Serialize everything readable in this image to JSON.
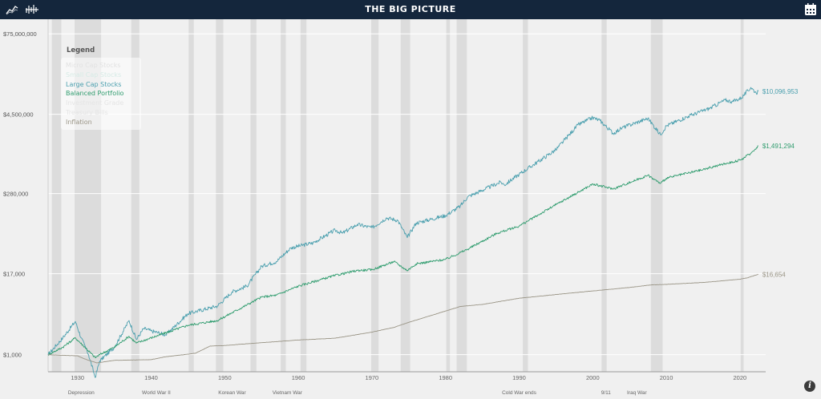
{
  "header": {
    "title": "THE BIG PICTURE",
    "left_icons": [
      "line-chart-icon",
      "bar-chart-icon"
    ],
    "right_icon": "calendar-icon"
  },
  "legend": {
    "title": "Legend",
    "items": [
      {
        "label": "Micro Cap Stocks",
        "color": "#e2e2e2",
        "active": false
      },
      {
        "label": "Small Cap Stocks",
        "color": "#d6ebe6",
        "active": false
      },
      {
        "label": "Large Cap Stocks",
        "color": "#4a9fae",
        "active": true
      },
      {
        "label": "Balanced Portfolio",
        "color": "#2f9c6e",
        "active": true
      },
      {
        "label": "Investment Grade",
        "color": "#e5e5e5",
        "active": false
      },
      {
        "label": "Treasury Bills",
        "color": "#e5e5e5",
        "active": false
      },
      {
        "label": "Inflation",
        "color": "#9a9586",
        "active": true
      }
    ]
  },
  "chart_data": {
    "type": "line",
    "title": "THE BIG PICTURE",
    "y_scale": "log",
    "ylim": [
      550,
      125000000
    ],
    "xlim": [
      1926,
      2023.5
    ],
    "y_ticks": [
      {
        "value": 1000,
        "label": "$1,000"
      },
      {
        "value": 17000,
        "label": "$17,000"
      },
      {
        "value": 280000,
        "label": "$280,000"
      },
      {
        "value": 4500000,
        "label": "$4,500,000"
      },
      {
        "value": 75000000,
        "label": "$75,000,000"
      }
    ],
    "x_ticks": [
      1930,
      1940,
      1950,
      1960,
      1970,
      1980,
      1990,
      2000,
      2010,
      2020
    ],
    "x_tick_labels": [
      "1930",
      "1940",
      "1950",
      "1960",
      "1970",
      "1980",
      "1990",
      "2000",
      "2010",
      "2020"
    ],
    "shaded_periods": [
      [
        1926.5,
        1927.8
      ],
      [
        1929.6,
        1933.2
      ],
      [
        1937.3,
        1938.4
      ],
      [
        1945.1,
        1945.8
      ],
      [
        1948.8,
        1949.8
      ],
      [
        1953.5,
        1954.3
      ],
      [
        1957.6,
        1958.3
      ],
      [
        1960.3,
        1961.1
      ],
      [
        1969.9,
        1970.9
      ],
      [
        1973.9,
        1975.2
      ],
      [
        1980.1,
        1980.6
      ],
      [
        1981.5,
        1982.9
      ],
      [
        1990.5,
        1991.2
      ],
      [
        2001.2,
        2001.9
      ],
      [
        2007.9,
        2009.5
      ],
      [
        2020.1,
        2020.5
      ]
    ],
    "events": [
      {
        "label": "Depression",
        "year": 1930.5
      },
      {
        "label": "World War II",
        "year": 1940.7
      },
      {
        "label": "Korean War",
        "year": 1951.0
      },
      {
        "label": "Vietnam War",
        "year": 1958.5
      },
      {
        "label": "Cold War ends",
        "year": 1990.0
      },
      {
        "label": "9/11",
        "year": 2001.8
      },
      {
        "label": "Iraq War",
        "year": 2006.0
      }
    ],
    "series": [
      {
        "name": "Large Cap Stocks",
        "color": "#4a9fae",
        "end_label": "$10,096,953",
        "points": [
          [
            1926,
            1000
          ],
          [
            1928,
            1800
          ],
          [
            1929.7,
            3200
          ],
          [
            1930.5,
            1800
          ],
          [
            1931.5,
            1000
          ],
          [
            1932.4,
            450
          ],
          [
            1933,
            800
          ],
          [
            1935,
            1300
          ],
          [
            1937,
            3300
          ],
          [
            1938,
            1700
          ],
          [
            1939,
            2500
          ],
          [
            1940,
            2300
          ],
          [
            1942,
            2000
          ],
          [
            1945,
            4200
          ],
          [
            1946,
            4500
          ],
          [
            1949,
            5500
          ],
          [
            1951,
            9000
          ],
          [
            1953,
            11000
          ],
          [
            1955,
            22000
          ],
          [
            1957,
            26000
          ],
          [
            1959,
            42000
          ],
          [
            1962,
            50000
          ],
          [
            1965,
            78000
          ],
          [
            1966,
            70000
          ],
          [
            1968,
            95000
          ],
          [
            1970,
            85000
          ],
          [
            1972,
            120000
          ],
          [
            1973.5,
            110000
          ],
          [
            1974.8,
            60000
          ],
          [
            1976,
            100000
          ],
          [
            1980,
            130000
          ],
          [
            1982,
            180000
          ],
          [
            1983,
            250000
          ],
          [
            1987.5,
            420000
          ],
          [
            1988,
            380000
          ],
          [
            1990,
            550000
          ],
          [
            1995,
            1300000
          ],
          [
            1998,
            3100000
          ],
          [
            2000,
            4000000
          ],
          [
            2001,
            3600000
          ],
          [
            2002.8,
            2300000
          ],
          [
            2004,
            2800000
          ],
          [
            2007.5,
            3900000
          ],
          [
            2009.2,
            2200000
          ],
          [
            2010,
            3000000
          ],
          [
            2013,
            4200000
          ],
          [
            2016,
            5600000
          ],
          [
            2018,
            7400000
          ],
          [
            2019,
            7000000
          ],
          [
            2020.2,
            8000000
          ],
          [
            2021.5,
            11500000
          ],
          [
            2022.2,
            9500000
          ],
          [
            2022.5,
            10096953
          ]
        ]
      },
      {
        "name": "Balanced Portfolio",
        "color": "#2f9c6e",
        "end_label": "$1,491,294",
        "points": [
          [
            1926,
            1000
          ],
          [
            1928,
            1300
          ],
          [
            1929.7,
            1800
          ],
          [
            1931,
            1300
          ],
          [
            1932.4,
            900
          ],
          [
            1933,
            1000
          ],
          [
            1935,
            1300
          ],
          [
            1937,
            1900
          ],
          [
            1938,
            1500
          ],
          [
            1940,
            1800
          ],
          [
            1945,
            2800
          ],
          [
            1949,
            3300
          ],
          [
            1955,
            7500
          ],
          [
            1957,
            8000
          ],
          [
            1960,
            11000
          ],
          [
            1965,
            16000
          ],
          [
            1968,
            19000
          ],
          [
            1970,
            19500
          ],
          [
            1973,
            26000
          ],
          [
            1974.8,
            19000
          ],
          [
            1976,
            24000
          ],
          [
            1980,
            28000
          ],
          [
            1983,
            40000
          ],
          [
            1987,
            70000
          ],
          [
            1990,
            90000
          ],
          [
            1995,
            190000
          ],
          [
            2000,
            390000
          ],
          [
            2002.8,
            330000
          ],
          [
            2007.5,
            530000
          ],
          [
            2009.2,
            400000
          ],
          [
            2010,
            480000
          ],
          [
            2015,
            650000
          ],
          [
            2018,
            800000
          ],
          [
            2020,
            900000
          ],
          [
            2021.5,
            1150000
          ],
          [
            2022.5,
            1491294
          ]
        ]
      },
      {
        "name": "Inflation",
        "color": "#9a9586",
        "end_label": "$16,654",
        "points": [
          [
            1926,
            1000
          ],
          [
            1928,
            980
          ],
          [
            1930,
            960
          ],
          [
            1931,
            860
          ],
          [
            1932.6,
            750
          ],
          [
            1935,
            820
          ],
          [
            1940,
            840
          ],
          [
            1942,
            930
          ],
          [
            1946,
            1050
          ],
          [
            1948,
            1350
          ],
          [
            1950,
            1380
          ],
          [
            1955,
            1520
          ],
          [
            1960,
            1670
          ],
          [
            1965,
            1780
          ],
          [
            1970,
            2200
          ],
          [
            1973,
            2600
          ],
          [
            1975,
            3100
          ],
          [
            1980,
            4600
          ],
          [
            1982,
            5400
          ],
          [
            1985,
            5800
          ],
          [
            1990,
            7200
          ],
          [
            1995,
            8200
          ],
          [
            2000,
            9300
          ],
          [
            2005,
            10500
          ],
          [
            2008,
            11500
          ],
          [
            2010,
            11700
          ],
          [
            2015,
            12500
          ],
          [
            2020,
            14000
          ],
          [
            2021,
            14700
          ],
          [
            2022.5,
            16654
          ]
        ]
      }
    ]
  }
}
